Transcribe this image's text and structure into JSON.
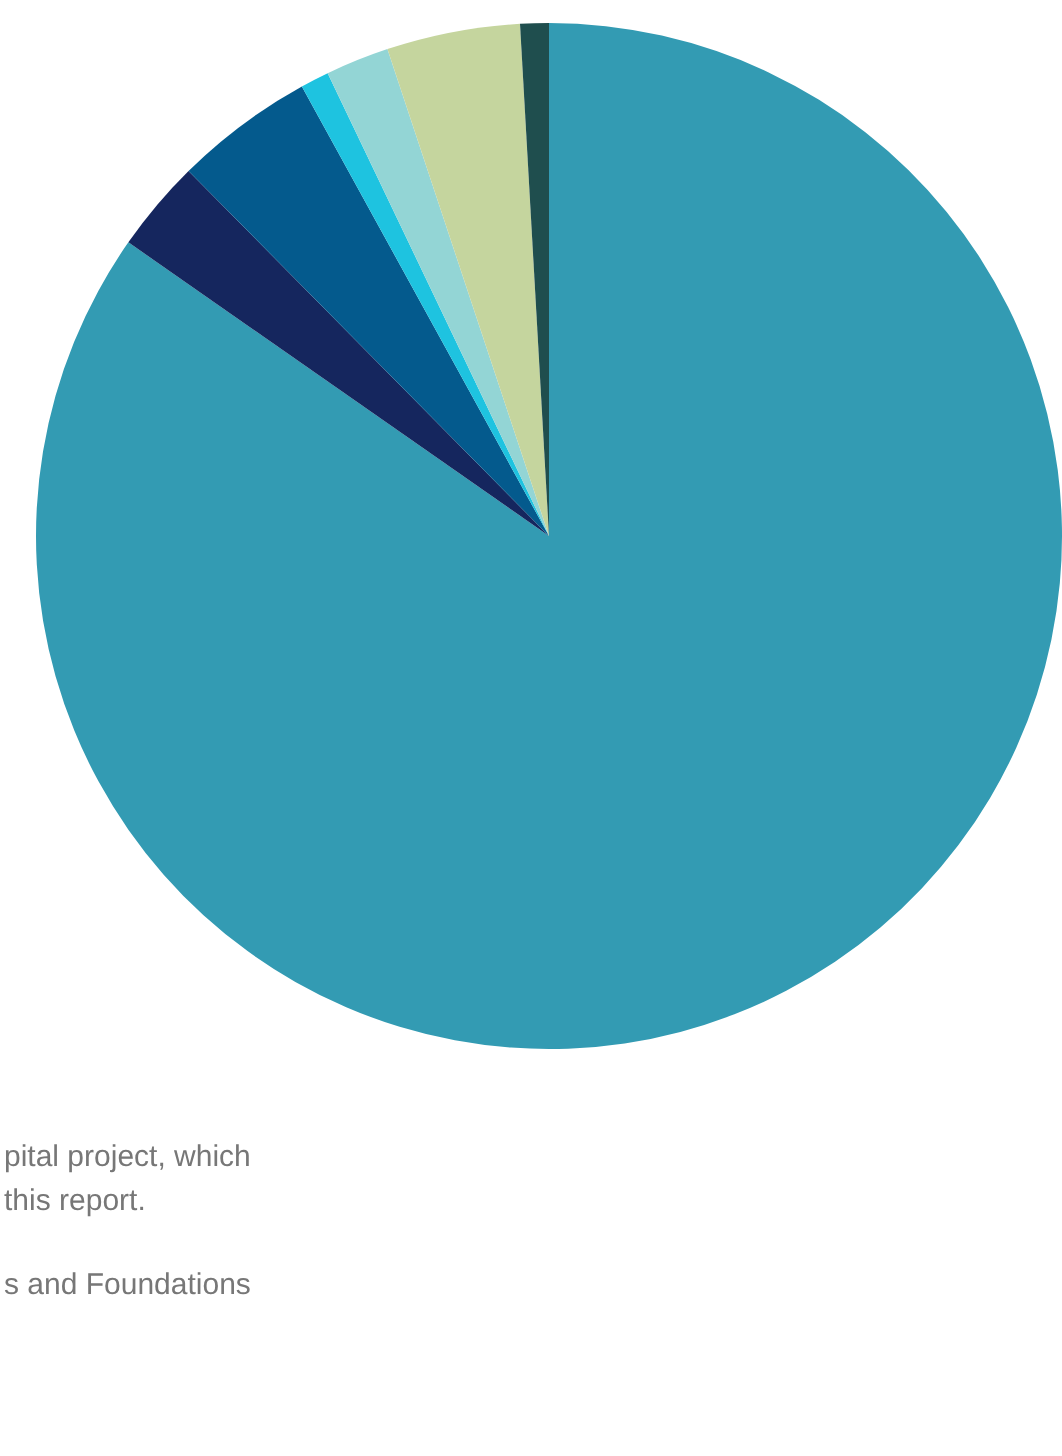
{
  "chart_data": {
    "type": "pie",
    "categories": [
      null,
      null,
      null,
      null,
      null,
      null,
      null
    ],
    "values": [
      84.7,
      2.9,
      4.4,
      0.9,
      2.0,
      4.2,
      0.9
    ],
    "colors": [
      "#339bb3",
      "#15265e",
      "#045a8d",
      "#1ec3e0",
      "#93d5d5",
      "#c5d59e",
      "#1f4e4e"
    ],
    "annotations": [
      "pital project, which",
      "this report.",
      "s and Foundations"
    ],
    "legend": false
  }
}
